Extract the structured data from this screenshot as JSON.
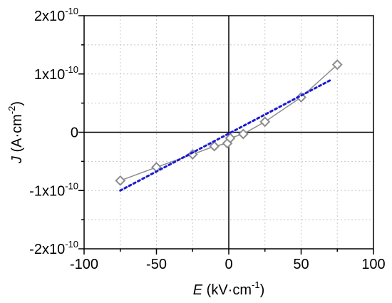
{
  "chart_data": {
    "type": "scatter",
    "xlabel": {
      "symbol": "E",
      "unit_pre": " (kV·cm",
      "unit_exp": "-1",
      "unit_post": ")"
    },
    "ylabel": {
      "symbol": "J",
      "unit_pre": " (A·cm",
      "unit_exp": "-2",
      "unit_post": ")"
    },
    "xlim": [
      -100,
      100
    ],
    "ylim": [
      -2e-10,
      2e-10
    ],
    "grid": true,
    "x_ticks": [
      {
        "value": -100,
        "label": "-100"
      },
      {
        "value": -50,
        "label": "-50"
      },
      {
        "value": 0,
        "label": "0"
      },
      {
        "value": 50,
        "label": "50"
      },
      {
        "value": 100,
        "label": "100"
      }
    ],
    "y_ticks": [
      {
        "value": 2e-10,
        "label": "2x10",
        "exp": "-10"
      },
      {
        "value": 1e-10,
        "label": "1x10",
        "exp": "-10"
      },
      {
        "value": 0,
        "label": "0",
        "exp": ""
      },
      {
        "value": -1e-10,
        "label": "-1x10",
        "exp": "-10"
      },
      {
        "value": -2e-10,
        "label": "-2x10",
        "exp": "-10"
      }
    ],
    "series": [
      {
        "style": "diamond-markers-with-line",
        "color": "#8c8c8c",
        "points": [
          {
            "x": -75,
            "y": -8.3e-11
          },
          {
            "x": -50,
            "y": -6e-11
          },
          {
            "x": -25,
            "y": -3.8e-11
          },
          {
            "x": -10,
            "y": -2.4e-11
          },
          {
            "x": -1,
            "y": -1.9e-11
          },
          {
            "x": 1,
            "y": -1e-11
          },
          {
            "x": 10,
            "y": -3e-12
          },
          {
            "x": 25,
            "y": 1.8e-11
          },
          {
            "x": 50,
            "y": 6e-11
          },
          {
            "x": 75,
            "y": 1.16e-10
          }
        ]
      },
      {
        "style": "dotted-fit-line",
        "color": "#1a1ad4",
        "points": [
          {
            "x": -75,
            "y": -1e-10
          },
          {
            "x": 70,
            "y": 8.9e-11
          }
        ]
      }
    ]
  }
}
